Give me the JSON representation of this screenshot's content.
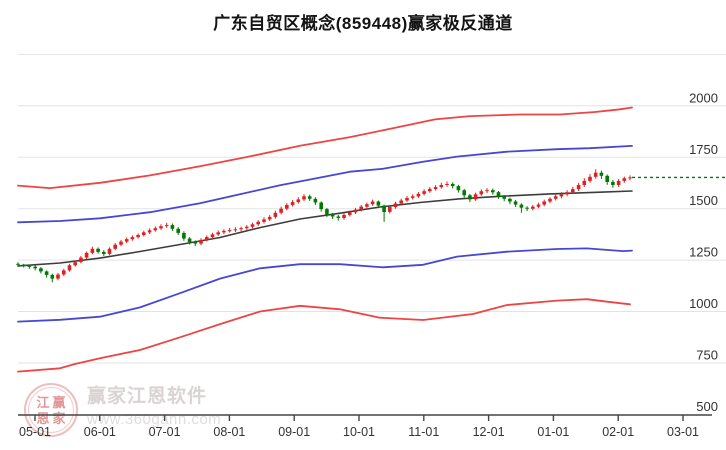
{
  "title": "广东自贸区概念(859448)赢家极反通道",
  "watermark": {
    "logo_chars": [
      "江",
      "赢",
      "恩",
      "家"
    ],
    "brand": "赢家江恩软件",
    "url": "www.360gann.com"
  },
  "chart_data": {
    "type": "candlestick",
    "title": "广东自贸区概念(859448)赢家极反通道",
    "legend_position": "none",
    "grid": true,
    "x_axis": {
      "labels": [
        "05-01",
        "06-01",
        "07-01",
        "08-01",
        "09-01",
        "10-01",
        "11-01",
        "12-01",
        "01-01",
        "02-01",
        "03-01"
      ]
    },
    "y_axis": {
      "tick_labels": [
        "2000",
        "1750",
        "1500",
        "1250",
        "1000",
        "750",
        "500"
      ],
      "tick_values": [
        2000,
        1750,
        1500,
        1250,
        1000,
        750,
        500
      ],
      "gridline_values": [
        2250,
        2000,
        1750,
        1500,
        1250,
        1000,
        750
      ],
      "min": 500,
      "max": 2250
    },
    "candles": {
      "up_color": "#e02020",
      "down_color": "#007a00",
      "ohlc_order": [
        "open",
        "close",
        "low",
        "high"
      ],
      "data": [
        [
          1232,
          1228,
          1220,
          1240
        ],
        [
          1228,
          1222,
          1214,
          1232
        ],
        [
          1222,
          1218,
          1208,
          1228
        ],
        [
          1218,
          1210,
          1200,
          1224
        ],
        [
          1210,
          1195,
          1185,
          1216
        ],
        [
          1195,
          1178,
          1165,
          1200
        ],
        [
          1178,
          1160,
          1142,
          1184
        ],
        [
          1160,
          1180,
          1152,
          1188
        ],
        [
          1180,
          1200,
          1172,
          1208
        ],
        [
          1200,
          1225,
          1194,
          1232
        ],
        [
          1225,
          1240,
          1218,
          1248
        ],
        [
          1240,
          1262,
          1234,
          1270
        ],
        [
          1262,
          1285,
          1255,
          1292
        ],
        [
          1285,
          1305,
          1278,
          1315
        ],
        [
          1305,
          1290,
          1281,
          1312
        ],
        [
          1290,
          1280,
          1270,
          1298
        ],
        [
          1280,
          1305,
          1274,
          1312
        ],
        [
          1305,
          1325,
          1298,
          1333
        ],
        [
          1325,
          1340,
          1318,
          1348
        ],
        [
          1340,
          1352,
          1332,
          1360
        ],
        [
          1352,
          1362,
          1344,
          1370
        ],
        [
          1362,
          1372,
          1354,
          1380
        ],
        [
          1372,
          1385,
          1365,
          1393
        ],
        [
          1385,
          1395,
          1377,
          1404
        ],
        [
          1395,
          1405,
          1388,
          1414
        ],
        [
          1405,
          1415,
          1397,
          1424
        ],
        [
          1415,
          1420,
          1407,
          1432
        ],
        [
          1420,
          1402,
          1392,
          1428
        ],
        [
          1402,
          1382,
          1372,
          1410
        ],
        [
          1382,
          1355,
          1344,
          1390
        ],
        [
          1355,
          1338,
          1326,
          1362
        ],
        [
          1338,
          1330,
          1318,
          1346
        ],
        [
          1330,
          1348,
          1322,
          1356
        ],
        [
          1348,
          1362,
          1340,
          1370
        ],
        [
          1362,
          1375,
          1354,
          1383
        ],
        [
          1375,
          1385,
          1367,
          1394
        ],
        [
          1385,
          1392,
          1376,
          1400
        ],
        [
          1392,
          1396,
          1384,
          1406
        ],
        [
          1396,
          1400,
          1386,
          1410
        ],
        [
          1400,
          1405,
          1390,
          1413
        ],
        [
          1405,
          1412,
          1396,
          1420
        ],
        [
          1412,
          1424,
          1404,
          1432
        ],
        [
          1424,
          1436,
          1416,
          1444
        ],
        [
          1436,
          1448,
          1428,
          1458
        ],
        [
          1448,
          1460,
          1440,
          1470
        ],
        [
          1460,
          1480,
          1452,
          1490
        ],
        [
          1480,
          1500,
          1472,
          1510
        ],
        [
          1500,
          1518,
          1492,
          1527
        ],
        [
          1518,
          1532,
          1510,
          1542
        ],
        [
          1532,
          1545,
          1524,
          1556
        ],
        [
          1545,
          1560,
          1536,
          1570
        ],
        [
          1560,
          1548,
          1538,
          1568
        ],
        [
          1548,
          1530,
          1518,
          1556
        ],
        [
          1530,
          1498,
          1486,
          1536
        ],
        [
          1498,
          1472,
          1460,
          1504
        ],
        [
          1472,
          1462,
          1450,
          1480
        ],
        [
          1462,
          1455,
          1442,
          1470
        ],
        [
          1455,
          1470,
          1446,
          1478
        ],
        [
          1470,
          1482,
          1462,
          1490
        ],
        [
          1482,
          1495,
          1474,
          1504
        ],
        [
          1495,
          1510,
          1486,
          1518
        ],
        [
          1510,
          1522,
          1502,
          1530
        ],
        [
          1522,
          1535,
          1514,
          1544
        ],
        [
          1535,
          1515,
          1504,
          1540
        ],
        [
          1515,
          1484,
          1436,
          1520
        ],
        [
          1484,
          1508,
          1476,
          1516
        ],
        [
          1508,
          1525,
          1500,
          1534
        ],
        [
          1525,
          1540,
          1517,
          1549
        ],
        [
          1540,
          1552,
          1532,
          1561
        ],
        [
          1552,
          1560,
          1544,
          1570
        ],
        [
          1560,
          1572,
          1552,
          1581
        ],
        [
          1572,
          1585,
          1564,
          1594
        ],
        [
          1585,
          1596,
          1577,
          1606
        ],
        [
          1596,
          1605,
          1588,
          1615
        ],
        [
          1605,
          1615,
          1597,
          1626
        ],
        [
          1615,
          1620,
          1606,
          1632
        ],
        [
          1620,
          1610,
          1598,
          1628
        ],
        [
          1610,
          1590,
          1578,
          1616
        ],
        [
          1590,
          1565,
          1554,
          1596
        ],
        [
          1565,
          1545,
          1532,
          1572
        ],
        [
          1545,
          1570,
          1538,
          1578
        ],
        [
          1570,
          1585,
          1562,
          1594
        ],
        [
          1585,
          1590,
          1576,
          1600
        ],
        [
          1590,
          1580,
          1568,
          1598
        ],
        [
          1580,
          1560,
          1548,
          1586
        ],
        [
          1560,
          1548,
          1536,
          1566
        ],
        [
          1548,
          1535,
          1522,
          1554
        ],
        [
          1535,
          1520,
          1508,
          1542
        ],
        [
          1520,
          1505,
          1480,
          1526
        ],
        [
          1505,
          1500,
          1488,
          1512
        ],
        [
          1500,
          1510,
          1492,
          1518
        ],
        [
          1510,
          1520,
          1502,
          1529
        ],
        [
          1520,
          1535,
          1512,
          1544
        ],
        [
          1535,
          1548,
          1526,
          1556
        ],
        [
          1548,
          1560,
          1540,
          1570
        ],
        [
          1560,
          1570,
          1550,
          1580
        ],
        [
          1570,
          1580,
          1560,
          1590
        ],
        [
          1580,
          1595,
          1572,
          1606
        ],
        [
          1595,
          1615,
          1586,
          1626
        ],
        [
          1615,
          1635,
          1606,
          1648
        ],
        [
          1635,
          1655,
          1626,
          1668
        ],
        [
          1655,
          1675,
          1646,
          1692
        ],
        [
          1675,
          1660,
          1645,
          1685
        ],
        [
          1660,
          1630,
          1616,
          1666
        ],
        [
          1630,
          1615,
          1602,
          1640
        ],
        [
          1615,
          1635,
          1606,
          1644
        ],
        [
          1635,
          1648,
          1626,
          1656
        ],
        [
          1648,
          1652,
          1638,
          1662
        ]
      ]
    },
    "channel_lines": [
      {
        "name": "upper-outer-line",
        "color": "#ee4444",
        "width": 1.8,
        "points": [
          [
            18,
            1612
          ],
          [
            50,
            1600
          ],
          [
            100,
            1626
          ],
          [
            150,
            1662
          ],
          [
            200,
            1706
          ],
          [
            250,
            1754
          ],
          [
            300,
            1806
          ],
          [
            350,
            1848
          ],
          [
            400,
            1898
          ],
          [
            435,
            1934
          ],
          [
            470,
            1950
          ],
          [
            520,
            1958
          ],
          [
            560,
            1958
          ],
          [
            595,
            1970
          ],
          [
            620,
            1983
          ],
          [
            632,
            1992
          ]
        ]
      },
      {
        "name": "upper-inner-line",
        "color": "#4747d1",
        "width": 1.8,
        "points": [
          [
            18,
            1434
          ],
          [
            60,
            1440
          ],
          [
            100,
            1453
          ],
          [
            150,
            1483
          ],
          [
            200,
            1526
          ],
          [
            240,
            1570
          ],
          [
            280,
            1614
          ],
          [
            310,
            1642
          ],
          [
            350,
            1680
          ],
          [
            383,
            1694
          ],
          [
            423,
            1728
          ],
          [
            457,
            1753
          ],
          [
            507,
            1777
          ],
          [
            557,
            1789
          ],
          [
            590,
            1794
          ],
          [
            632,
            1805
          ]
        ]
      },
      {
        "name": "middle-line",
        "color": "#3c3c3c",
        "width": 1.6,
        "points": [
          [
            18,
            1222
          ],
          [
            60,
            1236
          ],
          [
            100,
            1260
          ],
          [
            140,
            1292
          ],
          [
            180,
            1326
          ],
          [
            220,
            1360
          ],
          [
            260,
            1408
          ],
          [
            300,
            1450
          ],
          [
            340,
            1478
          ],
          [
            380,
            1508
          ],
          [
            420,
            1530
          ],
          [
            460,
            1548
          ],
          [
            500,
            1560
          ],
          [
            550,
            1572
          ],
          [
            600,
            1580
          ],
          [
            632,
            1586
          ]
        ]
      },
      {
        "name": "lower-inner-line",
        "color": "#4747d1",
        "width": 1.8,
        "points": [
          [
            18,
            951
          ],
          [
            60,
            960
          ],
          [
            100,
            975
          ],
          [
            140,
            1020
          ],
          [
            180,
            1089
          ],
          [
            220,
            1160
          ],
          [
            260,
            1210
          ],
          [
            300,
            1230
          ],
          [
            340,
            1230
          ],
          [
            383,
            1215
          ],
          [
            423,
            1227
          ],
          [
            457,
            1267
          ],
          [
            507,
            1291
          ],
          [
            557,
            1304
          ],
          [
            587,
            1307
          ],
          [
            623,
            1294
          ],
          [
            632,
            1296
          ]
        ]
      },
      {
        "name": "lower-outer-line",
        "color": "#ee4444",
        "width": 1.8,
        "points": [
          [
            18,
            708
          ],
          [
            60,
            724
          ],
          [
            75,
            745
          ],
          [
            100,
            773
          ],
          [
            140,
            813
          ],
          [
            180,
            875
          ],
          [
            220,
            939
          ],
          [
            260,
            1000
          ],
          [
            300,
            1028
          ],
          [
            340,
            1011
          ],
          [
            380,
            970
          ],
          [
            423,
            959
          ],
          [
            473,
            988
          ],
          [
            507,
            1032
          ],
          [
            557,
            1053
          ],
          [
            587,
            1060
          ],
          [
            607,
            1048
          ],
          [
            630,
            1035
          ]
        ]
      }
    ],
    "last_price_line": {
      "value": 1652,
      "color": "#007a00",
      "style": "dashed"
    },
    "colors": {
      "grid": "#e3e3e3",
      "axis": "#444444",
      "tick_text": "#333333"
    }
  }
}
